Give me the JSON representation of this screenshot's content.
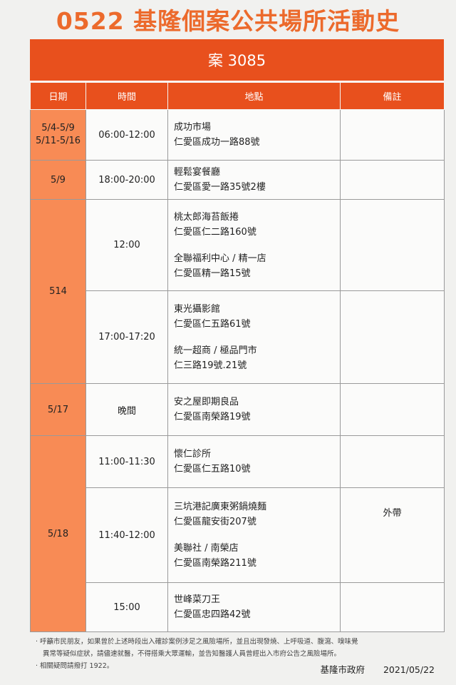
{
  "title": "0522 基隆個案公共場所活動史",
  "case_label": "案 3085",
  "columns": [
    "日期",
    "時間",
    "地點",
    "備註"
  ],
  "rows": [
    {
      "date": "5/4-5/9\n5/11-5/16",
      "time": "06:00-12:00",
      "places": [
        [
          "成功市場",
          "仁愛區成功一路88號"
        ]
      ],
      "note": ""
    },
    {
      "date": "5/9",
      "time": "18:00-20:00",
      "places": [
        [
          "輕鬆宴餐廳",
          "仁愛區愛一路35號2樓"
        ]
      ],
      "note": ""
    },
    {
      "date": "514",
      "time": "12:00",
      "places": [
        [
          "桃太郎海苔飯捲",
          "仁愛區仁二路160號"
        ],
        [
          "全聯福利中心 / 精一店",
          "仁愛區精一路15號"
        ]
      ],
      "note": ""
    },
    {
      "date": "514",
      "time": "17:00-17:20",
      "places": [
        [
          "東光攝影館",
          "仁愛區仁五路61號"
        ],
        [
          "統一超商 / 極品門市",
          "仁三路19號.21號"
        ]
      ],
      "note": ""
    },
    {
      "date": "5/17",
      "time": "晚間",
      "places": [
        [
          "安之屋即期良品",
          "仁愛區南榮路19號"
        ]
      ],
      "note": ""
    },
    {
      "date": "5/18",
      "time": "11:00-11:30",
      "places": [
        [
          "懷仁診所",
          "仁愛區仁五路10號"
        ]
      ],
      "note": ""
    },
    {
      "date": "5/18",
      "time": "11:40-12:00",
      "places": [
        [
          "三坑港記廣東粥鍋燒麵",
          "仁愛區龍安街207號"
        ],
        [
          "美聯社 / 南榮店",
          "仁愛區南榮路211號"
        ]
      ],
      "note": "外帶"
    },
    {
      "date": "5/18",
      "time": "15:00",
      "places": [
        [
          "世峰菜刀王",
          "仁愛區忠四路42號"
        ]
      ],
      "note": ""
    }
  ],
  "footer": {
    "notice_1": "· 呼籲市民朋友，如果曾於上述時段出入確診案例涉足之風險場所，並且出現發燒、上呼吸道、腹瀉、嗅味覺",
    "notice_1b": "異常等疑似症狀，請儘速就醫，不得搭乘大眾運輸，並告知醫護人員曾經出入市府公告之風險場所。",
    "notice_2": "· 相關疑問請撥打 1922。",
    "organization": "基隆市政府",
    "date": "2021/05/22"
  }
}
